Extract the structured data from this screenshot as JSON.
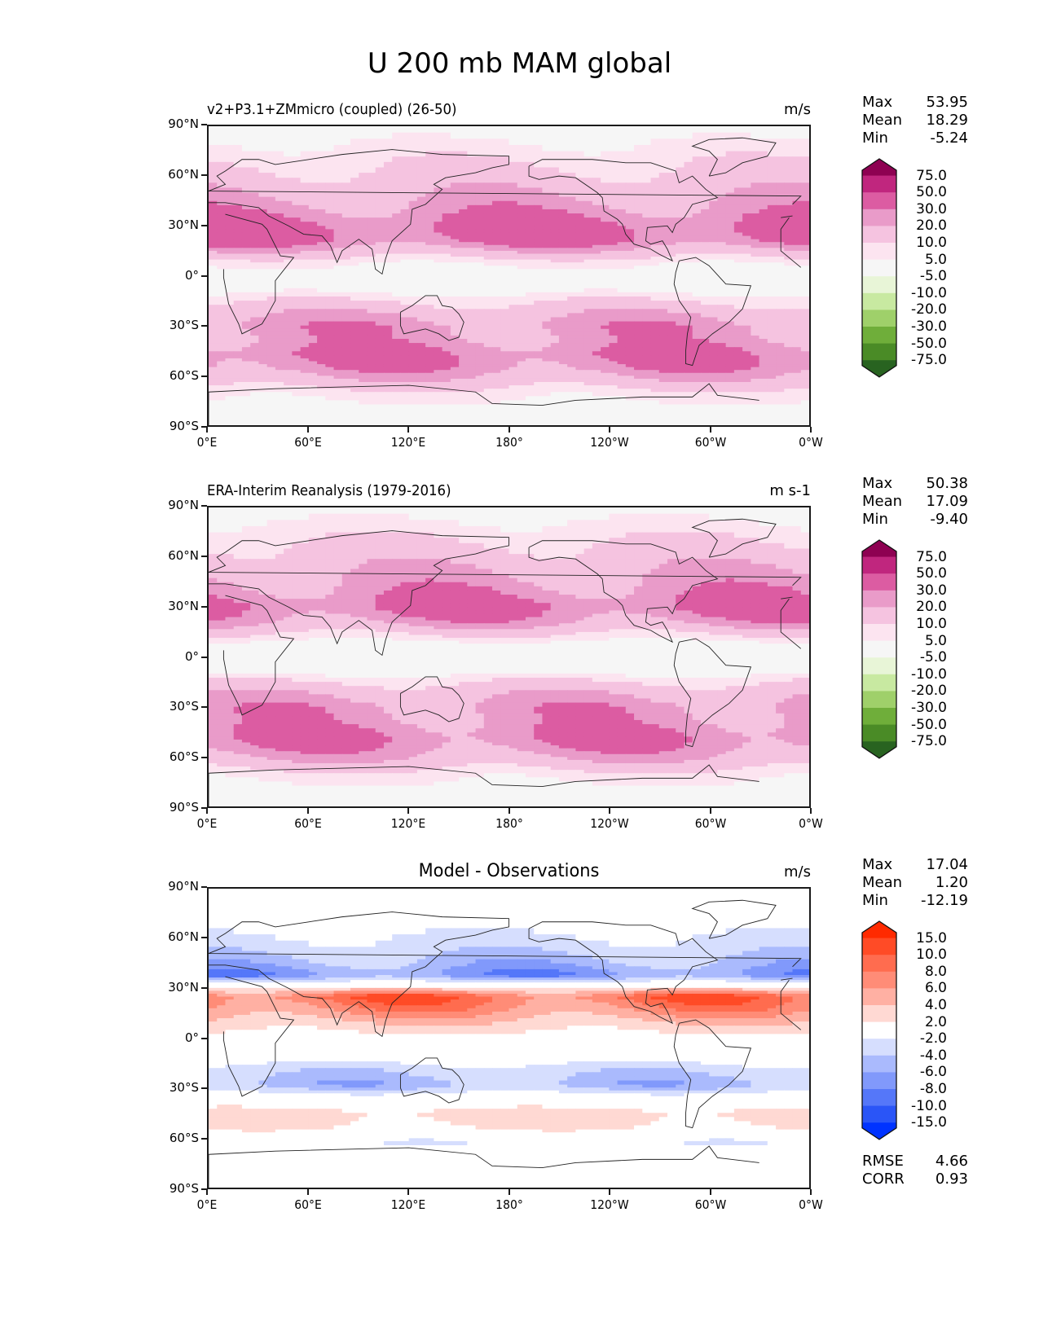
{
  "chart_data": {
    "type": "heatmap",
    "title": "U 200 mb MAM global",
    "panels": [
      {
        "id": "test",
        "title": "v2+P3.1+ZMmicro (coupled) (26-50)",
        "title_align": "left",
        "units": "m/s",
        "stats": [
          {
            "label": "Max",
            "value": "53.95"
          },
          {
            "label": "Mean",
            "value": "18.29"
          },
          {
            "label": "Min",
            "value": "-5.24"
          }
        ],
        "colormap": "PiYG",
        "colorbar": {
          "levels": [
            "75.0",
            "50.0",
            "30.0",
            "20.0",
            "10.0",
            "5.0",
            "-5.0",
            "-10.0",
            "-20.0",
            "-30.0",
            "-50.0",
            "-75.0"
          ],
          "colors": [
            "#8e0152",
            "#c0267e",
            "#dc5ca2",
            "#e99bc9",
            "#f5c3e0",
            "#fce4f0",
            "#f6f6f6",
            "#e8f5d7",
            "#c8e9a1",
            "#9fd06a",
            "#6fae3a",
            "#4a8b26",
            "#286320"
          ],
          "extend": "both"
        },
        "bands": [
          {
            "lat": 90,
            "value": 2
          },
          {
            "lat": 75,
            "value": 7
          },
          {
            "lat": 62,
            "value": 12
          },
          {
            "lat": 50,
            "value": 18
          },
          {
            "lat": 40,
            "value": 25
          },
          {
            "lat": 30,
            "value": 36
          },
          {
            "lat": 22,
            "value": 35
          },
          {
            "lat": 15,
            "value": 18
          },
          {
            "lat": 8,
            "value": 6
          },
          {
            "lat": 0,
            "value": 2
          },
          {
            "lat": -10,
            "value": 4
          },
          {
            "lat": -20,
            "value": 15
          },
          {
            "lat": -30,
            "value": 25
          },
          {
            "lat": -38,
            "value": 24
          },
          {
            "lat": -48,
            "value": 32
          },
          {
            "lat": -55,
            "value": 28
          },
          {
            "lat": -62,
            "value": 18
          },
          {
            "lat": -70,
            "value": 8
          },
          {
            "lat": -80,
            "value": 3
          },
          {
            "lat": -90,
            "value": 1
          }
        ]
      },
      {
        "id": "reference",
        "title": "ERA-Interim Reanalysis (1979-2016)",
        "title_align": "left",
        "units": "m s-1",
        "stats": [
          {
            "label": "Max",
            "value": "50.38"
          },
          {
            "label": "Mean",
            "value": "17.09"
          },
          {
            "label": "Min",
            "value": "-9.40"
          }
        ],
        "colormap": "PiYG",
        "colorbar": {
          "levels": [
            "75.0",
            "50.0",
            "30.0",
            "20.0",
            "10.0",
            "5.0",
            "-5.0",
            "-10.0",
            "-20.0",
            "-30.0",
            "-50.0",
            "-75.0"
          ],
          "colors": [
            "#8e0152",
            "#c0267e",
            "#dc5ca2",
            "#e99bc9",
            "#f5c3e0",
            "#fce4f0",
            "#f6f6f6",
            "#e8f5d7",
            "#c8e9a1",
            "#9fd06a",
            "#6fae3a",
            "#4a8b26",
            "#286320"
          ],
          "extend": "both"
        },
        "bands": [
          {
            "lat": 90,
            "value": 2
          },
          {
            "lat": 75,
            "value": 8
          },
          {
            "lat": 62,
            "value": 14
          },
          {
            "lat": 50,
            "value": 20
          },
          {
            "lat": 40,
            "value": 26
          },
          {
            "lat": 30,
            "value": 34
          },
          {
            "lat": 22,
            "value": 25
          },
          {
            "lat": 15,
            "value": 12
          },
          {
            "lat": 8,
            "value": 3
          },
          {
            "lat": 0,
            "value": -2
          },
          {
            "lat": -10,
            "value": 4
          },
          {
            "lat": -20,
            "value": 16
          },
          {
            "lat": -30,
            "value": 25
          },
          {
            "lat": -38,
            "value": 25
          },
          {
            "lat": -48,
            "value": 31
          },
          {
            "lat": -55,
            "value": 27
          },
          {
            "lat": -62,
            "value": 18
          },
          {
            "lat": -70,
            "value": 8
          },
          {
            "lat": -80,
            "value": 3
          },
          {
            "lat": -90,
            "value": 1
          }
        ]
      },
      {
        "id": "difference",
        "title": "Model - Observations",
        "title_align": "center",
        "units": "m/s",
        "stats": [
          {
            "label": "Max",
            "value": "17.04"
          },
          {
            "label": "Mean",
            "value": "1.20"
          },
          {
            "label": "Min",
            "value": "-12.19"
          }
        ],
        "extra_stats": [
          {
            "label": "RMSE",
            "value": "4.66"
          },
          {
            "label": "CORR",
            "value": "0.93"
          }
        ],
        "colormap": "bwr",
        "colorbar": {
          "levels": [
            "15.0",
            "10.0",
            "8.0",
            "6.0",
            "4.0",
            "2.0",
            "-2.0",
            "-4.0",
            "-6.0",
            "-8.0",
            "-10.0",
            "-15.0"
          ],
          "colors": [
            "#ff2a00",
            "#ff4b26",
            "#ff6c4f",
            "#ff8c77",
            "#ffb0a3",
            "#ffd9d3",
            "#ffffff",
            "#d6defe",
            "#aabafd",
            "#8199fb",
            "#5577f9",
            "#2a55f7",
            "#0033ff"
          ],
          "extend": "both"
        },
        "bands": [
          {
            "lat": 90,
            "value": 0
          },
          {
            "lat": 70,
            "value": -1
          },
          {
            "lat": 55,
            "value": -3
          },
          {
            "lat": 45,
            "value": -5
          },
          {
            "lat": 38,
            "value": -7
          },
          {
            "lat": 32,
            "value": 0
          },
          {
            "lat": 25,
            "value": 9
          },
          {
            "lat": 18,
            "value": 7
          },
          {
            "lat": 10,
            "value": 4
          },
          {
            "lat": 0,
            "value": 1
          },
          {
            "lat": -10,
            "value": 0
          },
          {
            "lat": -18,
            "value": -3
          },
          {
            "lat": -28,
            "value": -5
          },
          {
            "lat": -35,
            "value": -1
          },
          {
            "lat": -45,
            "value": 3
          },
          {
            "lat": -55,
            "value": 2
          },
          {
            "lat": -62,
            "value": -2
          },
          {
            "lat": -72,
            "value": 1
          },
          {
            "lat": -82,
            "value": 0
          },
          {
            "lat": -90,
            "value": 1
          }
        ]
      }
    ],
    "x_ticks": [
      "0°E",
      "60°E",
      "120°E",
      "180°",
      "120°W",
      "60°W",
      "0°W"
    ],
    "y_ticks": [
      "90°N",
      "60°N",
      "30°N",
      "0°",
      "30°S",
      "60°S",
      "90°S"
    ],
    "xlim": [
      0,
      360
    ],
    "ylim": [
      -90,
      90
    ],
    "grid": false
  }
}
